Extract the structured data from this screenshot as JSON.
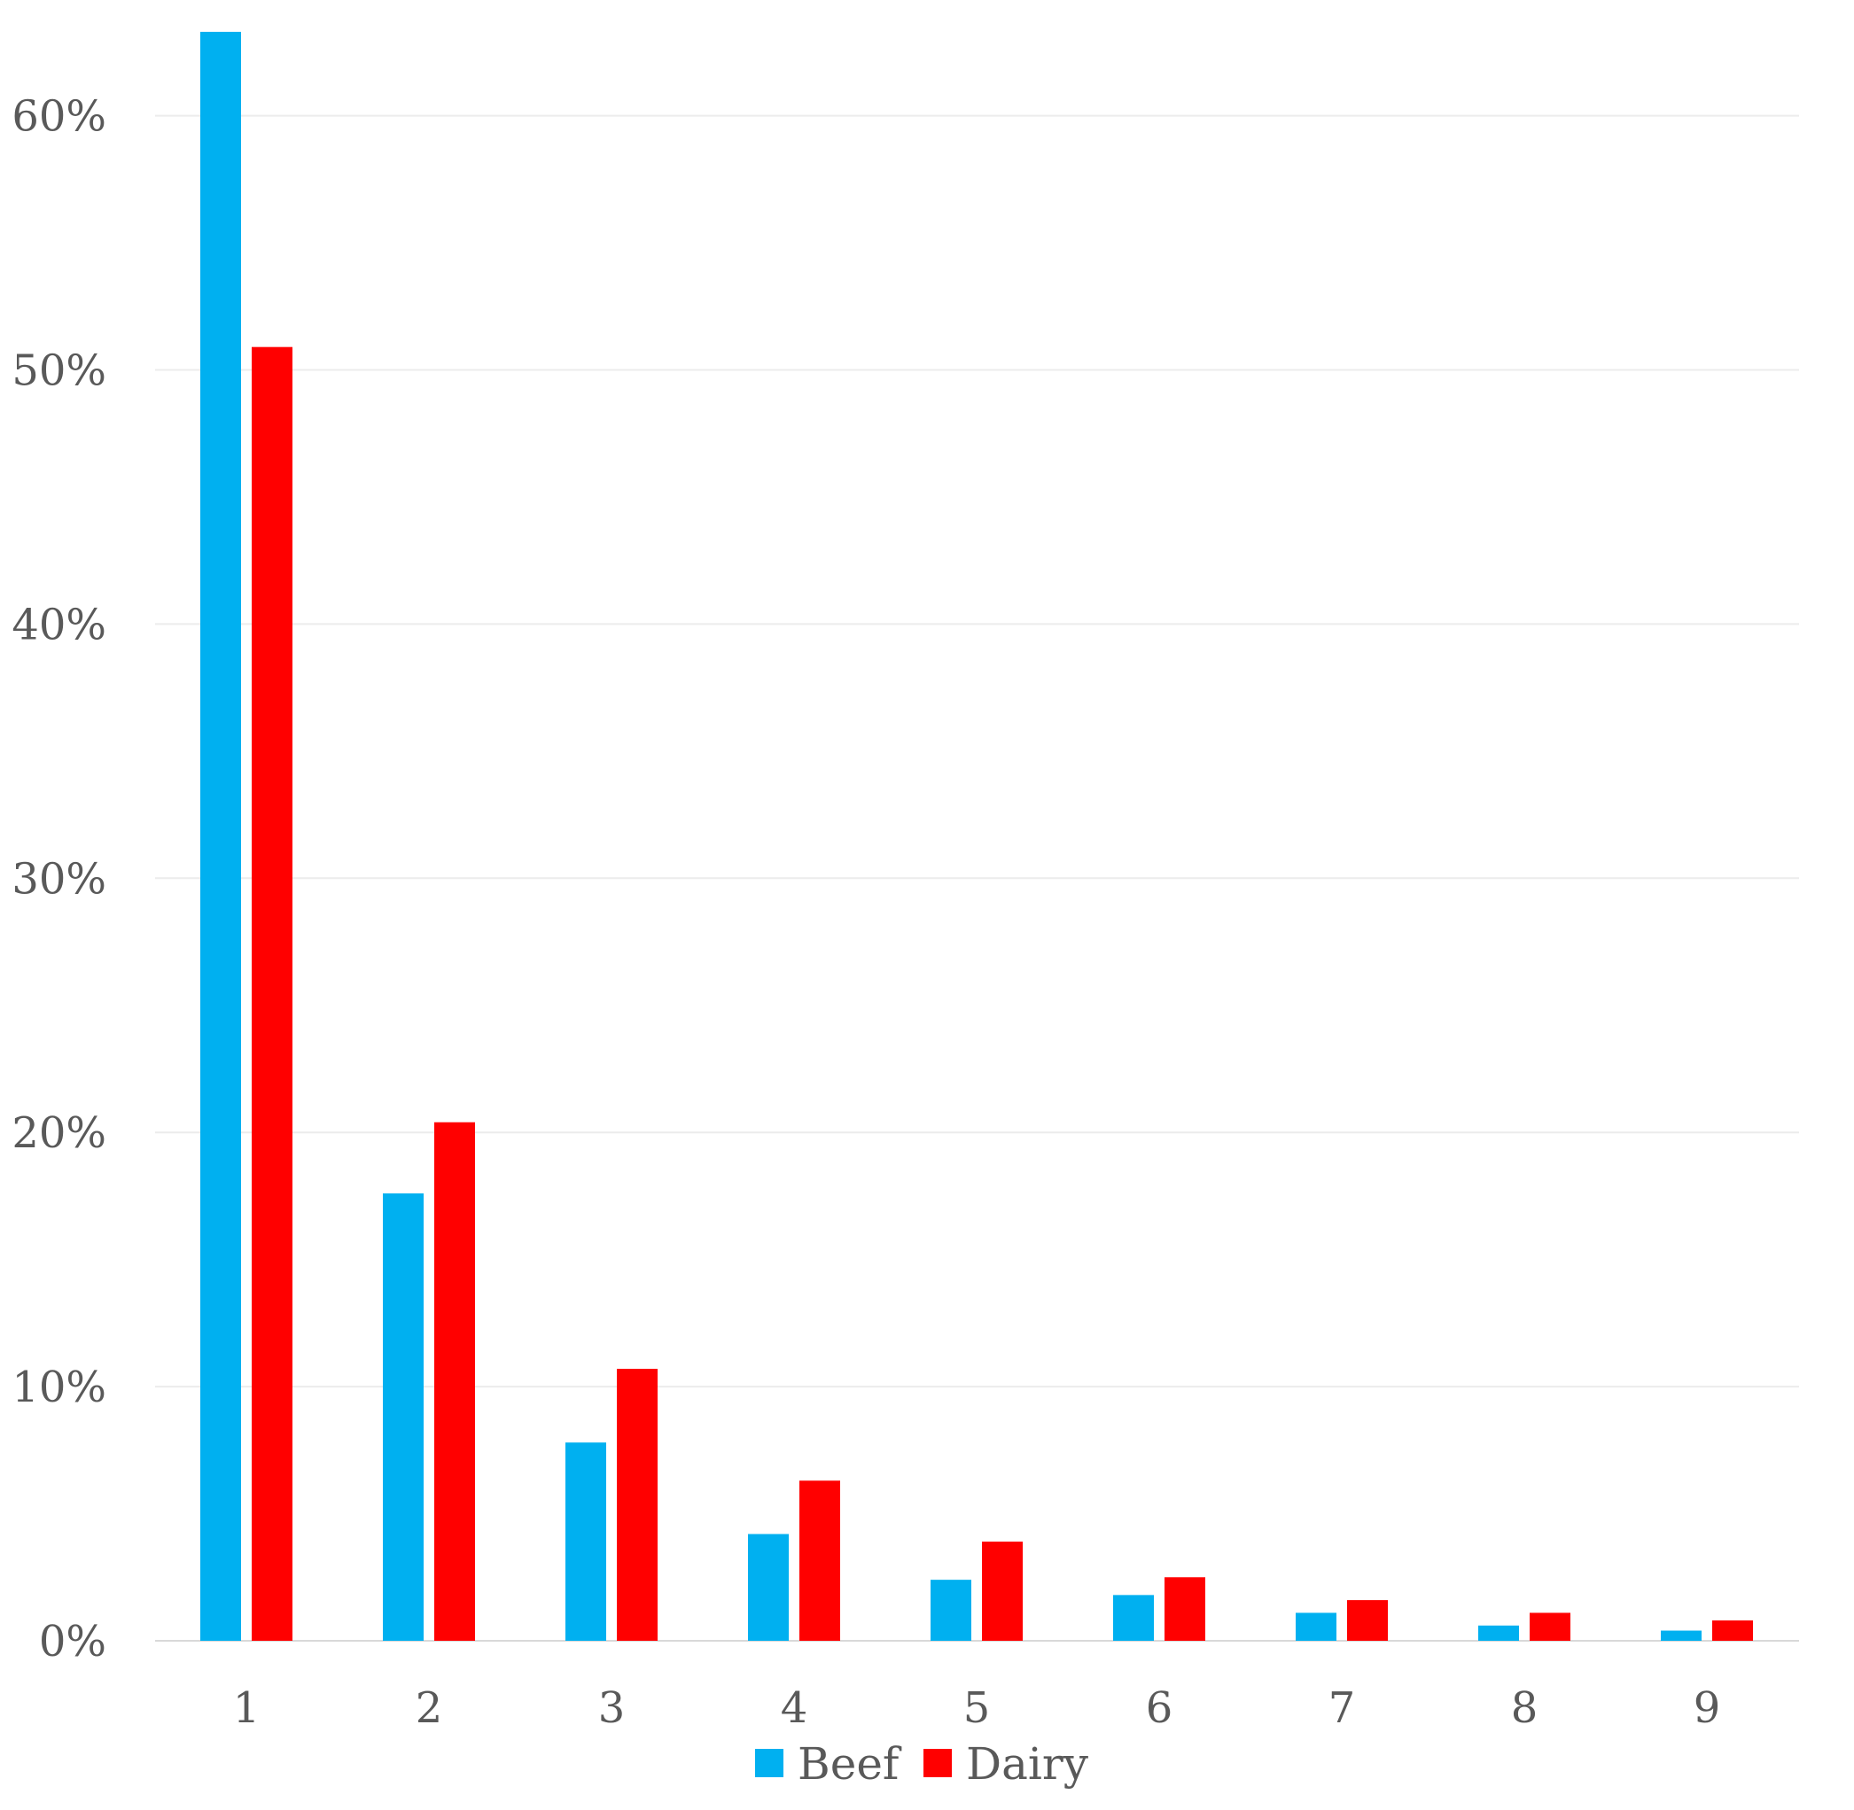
{
  "chart_data": {
    "type": "bar",
    "categories": [
      "1",
      "2",
      "3",
      "4",
      "5",
      "6",
      "7",
      "8",
      "9"
    ],
    "series": [
      {
        "name": "Beef",
        "color": "#00b0f0",
        "values": [
          63.3,
          17.6,
          7.8,
          4.2,
          2.4,
          1.8,
          1.1,
          0.6,
          0.4
        ]
      },
      {
        "name": "Dairy",
        "color": "#ff0000",
        "values": [
          50.9,
          20.4,
          10.7,
          6.3,
          3.9,
          2.5,
          1.6,
          1.1,
          0.8
        ]
      }
    ],
    "yticks": [
      "0%",
      "10%",
      "20%",
      "30%",
      "40%",
      "50%",
      "60%"
    ],
    "ylim": [
      0,
      65
    ],
    "grid": true,
    "legend": "bottom-center"
  }
}
